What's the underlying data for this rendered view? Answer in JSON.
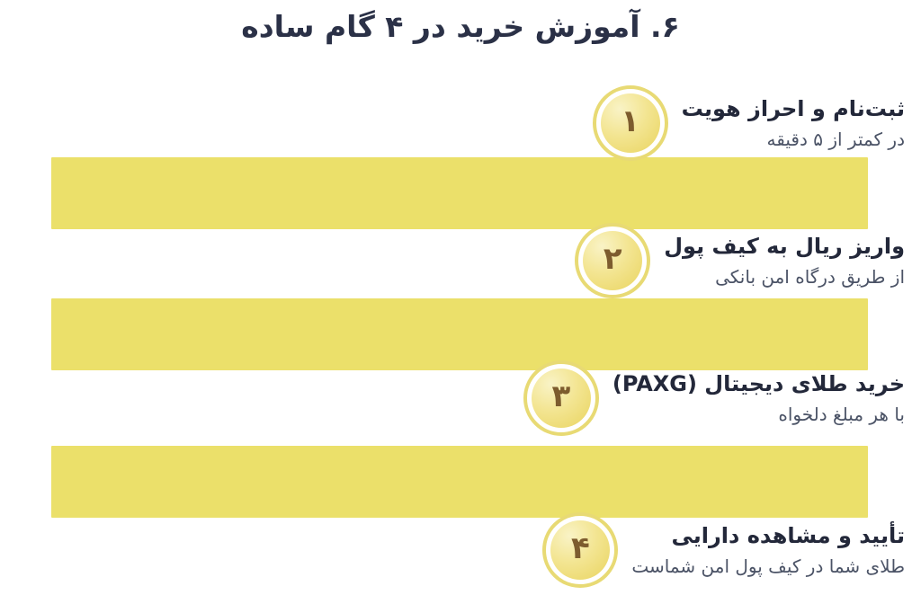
{
  "page": {
    "title": "۶. آموزش خرید در ۴ گام ساده"
  },
  "steps": [
    {
      "number": "۱",
      "title": "ثبت‌نام و احراز هویت",
      "subtitle": "در کمتر از ۵ دقیقه"
    },
    {
      "number": "۲",
      "title": "واریز ریال به کیف پول",
      "subtitle": "از طریق درگاه امن بانکی"
    },
    {
      "number": "۳",
      "title": "خرید طلای دیجیتال (PAXG)",
      "subtitle": "با هر مبلغ دلخواه"
    },
    {
      "number": "۴",
      "title": "تأیید و مشاهده دارایی",
      "subtitle": "طلای شما در کیف پول امن شماست"
    }
  ],
  "colors": {
    "title_text": "#2b3147",
    "step_title_text": "#23283a",
    "step_subtitle_text": "#4b5366",
    "bar_yellow": "#ebe06a",
    "badge_ring": "#e8da74",
    "badge_fill_light": "#f9f3c6",
    "badge_fill_dark": "#e9d45f",
    "badge_number_text": "#7d5c2e",
    "background": "#ffffff"
  }
}
